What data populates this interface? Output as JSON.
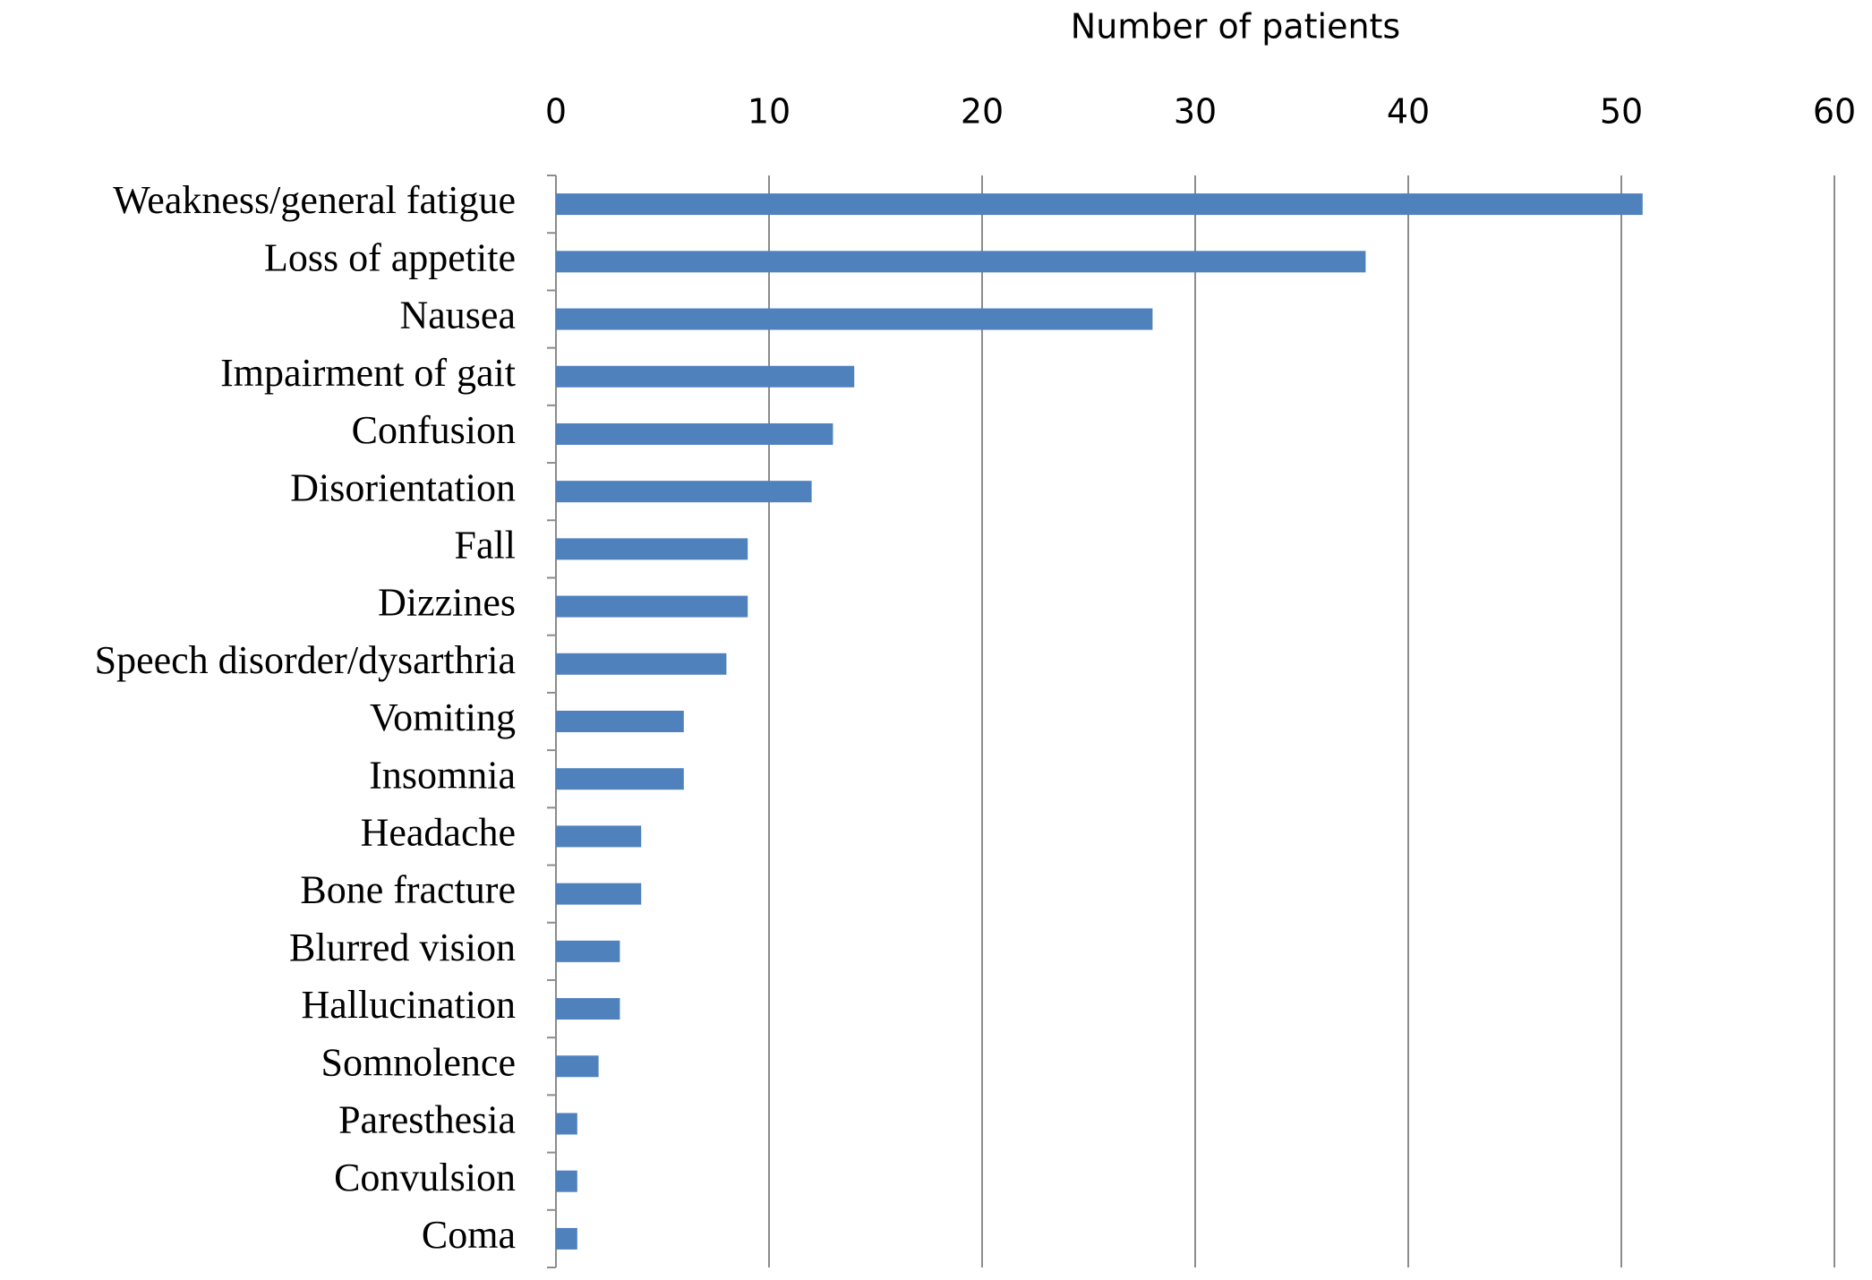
{
  "chart_data": {
    "type": "barh",
    "x_label": "Number of patients",
    "categories": [
      "Weakness/general fatigue",
      "Loss of appetite",
      "Nausea",
      "Impairment of gait",
      "Confusion",
      "Disorientation",
      "Fall",
      "Dizzines",
      "Speech disorder/dysarthria",
      "Vomiting",
      "Insomnia",
      "Headache",
      "Bone fracture",
      "Blurred vision",
      "Hallucination",
      "Somnolence",
      "Paresthesia",
      "Convulsion",
      "Coma"
    ],
    "values": [
      51,
      38,
      28,
      14,
      13,
      12,
      9,
      9,
      8,
      6,
      6,
      4,
      4,
      3,
      3,
      2,
      1,
      1,
      1
    ],
    "color": "#4f81bd",
    "xlim": [
      0,
      60
    ],
    "xticks": [
      0,
      10,
      20,
      30,
      40,
      50,
      60
    ],
    "grid": true
  }
}
